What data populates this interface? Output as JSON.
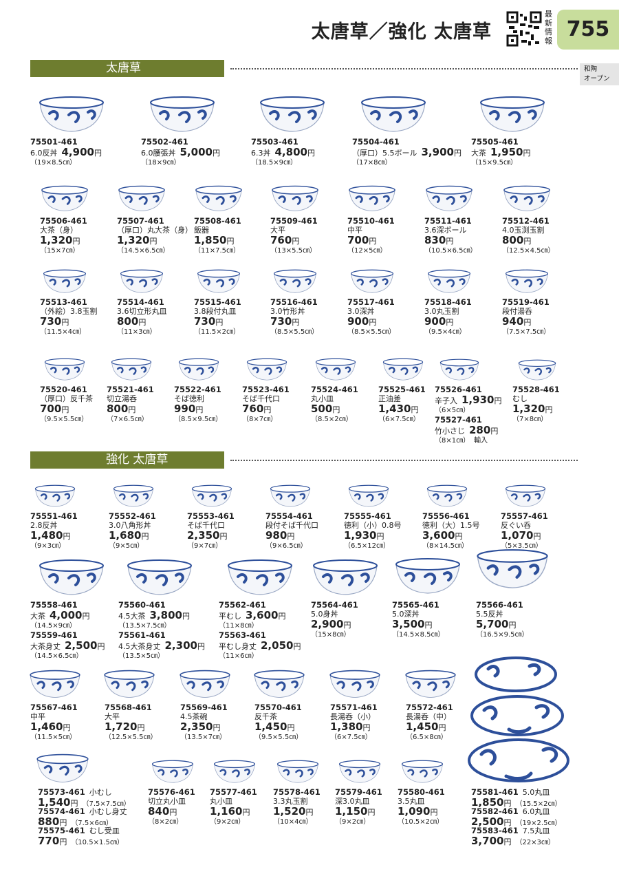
{
  "header": {
    "title": "太唐草／強化 太唐草",
    "qr_label": "最新情報",
    "page_number": "755",
    "side_tab": [
      "和陶",
      "オープン"
    ]
  },
  "currency": "円",
  "sections": [
    {
      "title": "太唐草",
      "items": [
        {
          "code": "75501-461",
          "name": "6.0反丼",
          "price": "4,900",
          "size": "（19×8.5㎝）"
        },
        {
          "code": "75502-461",
          "name": "6.0腰張丼",
          "price": "5,000",
          "size": "（18×9㎝）"
        },
        {
          "code": "75503-461",
          "name": "6.3丼",
          "price": "4,800",
          "size": "（18.5×9㎝）"
        },
        {
          "code": "75504-461",
          "name": "（厚口）5.5ボール",
          "price": "3,900",
          "size": "（17×8㎝）"
        },
        {
          "code": "75505-461",
          "name": "大茶",
          "price": "1,950",
          "size": "（15×9.5㎝）"
        },
        {
          "code": "75506-461",
          "name": "大茶（身）",
          "price": "1,320",
          "size": "（15×7㎝）"
        },
        {
          "code": "75507-461",
          "name": "（厚口）丸大茶（身）",
          "price": "1,320",
          "size": "（14.5×6.5㎝）"
        },
        {
          "code": "75508-461",
          "name": "飯器",
          "price": "1,850",
          "size": "（11×7.5㎝）"
        },
        {
          "code": "75509-461",
          "name": "大平",
          "price": "760",
          "size": "（13×5.5㎝）"
        },
        {
          "code": "75510-461",
          "name": "中平",
          "price": "700",
          "size": "（12×5㎝）"
        },
        {
          "code": "75511-461",
          "name": "3.6深ボール",
          "price": "830",
          "size": "（10.5×6.5㎝）"
        },
        {
          "code": "75512-461",
          "name": "4.0玉渕玉割",
          "price": "800",
          "size": "（12.5×4.5㎝）"
        },
        {
          "code": "75513-461",
          "name": "（外絵）3.8玉割",
          "price": "730",
          "size": "（11.5×4㎝）"
        },
        {
          "code": "75514-461",
          "name": "3.6切立形丸皿",
          "price": "800",
          "size": "（11×3㎝）"
        },
        {
          "code": "75515-461",
          "name": "3.8段付丸皿",
          "price": "730",
          "size": "（11.5×2㎝）"
        },
        {
          "code": "75516-461",
          "name": "3.0竹形丼",
          "price": "730",
          "size": "（8.5×5.5㎝）"
        },
        {
          "code": "75517-461",
          "name": "3.0深丼",
          "price": "900",
          "size": "（8.5×5.5㎝）"
        },
        {
          "code": "75518-461",
          "name": "3.0丸玉割",
          "price": "900",
          "size": "（9.5×4㎝）"
        },
        {
          "code": "75519-461",
          "name": "段付湯呑",
          "price": "940",
          "size": "（7.5×7.5㎝）"
        },
        {
          "code": "75520-461",
          "name": "（厚口）反千茶",
          "price": "700",
          "size": "（9.5×5.5㎝）"
        },
        {
          "code": "75521-461",
          "name": "切立湯呑",
          "price": "800",
          "size": "（7×6.5㎝）"
        },
        {
          "code": "75522-461",
          "name": "そば徳利",
          "price": "990",
          "size": "（8.5×9.5㎝）"
        },
        {
          "code": "75523-461",
          "name": "そば千代口",
          "price": "760",
          "size": "（8×7㎝）"
        },
        {
          "code": "75524-461",
          "name": "丸小皿",
          "price": "500",
          "size": "（8.5×2㎝）"
        },
        {
          "code": "75525-461",
          "name": "正油差",
          "price": "1,430",
          "size": "（6×7.5㎝）"
        },
        {
          "code": "75526-461",
          "name": "辛子入",
          "price": "1,930",
          "size": "（6×5㎝）"
        },
        {
          "code": "75527-461",
          "name": "竹小さじ",
          "price": "280",
          "size": "（8×1㎝）",
          "note": "輸入"
        },
        {
          "code": "75528-461",
          "name": "むし",
          "price": "1,320",
          "size": "（7×8㎝）"
        }
      ]
    },
    {
      "title": "強化 太唐草",
      "items": [
        {
          "code": "75551-461",
          "name": "2.8反丼",
          "price": "1,480",
          "size": "（9×3㎝）"
        },
        {
          "code": "75552-461",
          "name": "3.0八角形丼",
          "price": "1,680",
          "size": "（9×5㎝）"
        },
        {
          "code": "75553-461",
          "name": "そば千代口",
          "price": "2,350",
          "size": "（9×7㎝）"
        },
        {
          "code": "75554-461",
          "name": "段付そば千代口",
          "price": "980",
          "size": "（9×6.5㎝）"
        },
        {
          "code": "75555-461",
          "name": "徳利（小）0.8号",
          "price": "1,930",
          "size": "（6.5×12㎝）"
        },
        {
          "code": "75556-461",
          "name": "徳利（大）1.5号",
          "price": "3,600",
          "size": "（8×14.5㎝）"
        },
        {
          "code": "75557-461",
          "name": "反ぐい呑",
          "price": "1,070",
          "size": "（5×3.5㎝）"
        },
        {
          "code": "75558-461",
          "name": "大茶",
          "price": "4,000",
          "size": "（14.5×9㎝）"
        },
        {
          "code": "75559-461",
          "name": "大茶身丈",
          "price": "2,500",
          "size": "（14.5×6.5㎝）"
        },
        {
          "code": "75560-461",
          "name": "4.5大茶",
          "price": "3,800",
          "size": "（13.5×7.5㎝）"
        },
        {
          "code": "75561-461",
          "name": "4.5大茶身丈",
          "price": "2,300",
          "size": "（13.5×5㎝）"
        },
        {
          "code": "75562-461",
          "name": "平むし",
          "price": "3,600",
          "size": "（11×8㎝）"
        },
        {
          "code": "75563-461",
          "name": "平むし身丈",
          "price": "2,050",
          "size": "（11×6㎝）"
        },
        {
          "code": "75564-461",
          "name": "5.0身丼",
          "price": "2,900",
          "size": "（15×8㎝）"
        },
        {
          "code": "75565-461",
          "name": "5.0深丼",
          "price": "3,500",
          "size": "（14.5×8.5㎝）"
        },
        {
          "code": "75566-461",
          "name": "5.5反丼",
          "price": "5,700",
          "size": "（16.5×9.5㎝）"
        },
        {
          "code": "75567-461",
          "name": "中平",
          "price": "1,460",
          "size": "（11.5×5㎝）"
        },
        {
          "code": "75568-461",
          "name": "大平",
          "price": "1,720",
          "size": "（12.5×5.5㎝）"
        },
        {
          "code": "75569-461",
          "name": "4.5茶碗",
          "price": "2,350",
          "size": "（13.5×7㎝）"
        },
        {
          "code": "75570-461",
          "name": "反千茶",
          "price": "1,450",
          "size": "（9.5×5.5㎝）"
        },
        {
          "code": "75571-461",
          "name": "長湯呑（小）",
          "price": "1,380",
          "size": "（6×7.5㎝）"
        },
        {
          "code": "75572-461",
          "name": "長湯呑（中）",
          "price": "1,450",
          "size": "（6.5×8㎝）"
        },
        {
          "code": "75573-461",
          "name": "小むし",
          "price": "1,540",
          "size": "（7.5×7.5㎝）"
        },
        {
          "code": "75574-461",
          "name": "小むし身丈",
          "price": "880",
          "size": "（7.5×6㎝）"
        },
        {
          "code": "75575-461",
          "name": "むし受皿",
          "price": "770",
          "size": "（10.5×1.5㎝）"
        },
        {
          "code": "75576-461",
          "name": "切立丸小皿",
          "price": "840",
          "size": "（8×2㎝）"
        },
        {
          "code": "75577-461",
          "name": "丸小皿",
          "price": "1,160",
          "size": "（9×2㎝）"
        },
        {
          "code": "75578-461",
          "name": "3.3丸玉割",
          "price": "1,520",
          "size": "（10×4㎝）"
        },
        {
          "code": "75579-461",
          "name": "深3.0丸皿",
          "price": "1,150",
          "size": "（9×2㎝）"
        },
        {
          "code": "75580-461",
          "name": "3.5丸皿",
          "price": "1,090",
          "size": "（10.5×2㎝）"
        },
        {
          "code": "75581-461",
          "name": "5.0丸皿",
          "price": "1,850",
          "size": "（15.5×2㎝）"
        },
        {
          "code": "75582-461",
          "name": "6.0丸皿",
          "price": "2,500",
          "size": "（19×2.5㎝）"
        },
        {
          "code": "75583-461",
          "name": "7.5丸皿",
          "price": "3,700",
          "size": "（22×3㎝）"
        }
      ]
    }
  ]
}
